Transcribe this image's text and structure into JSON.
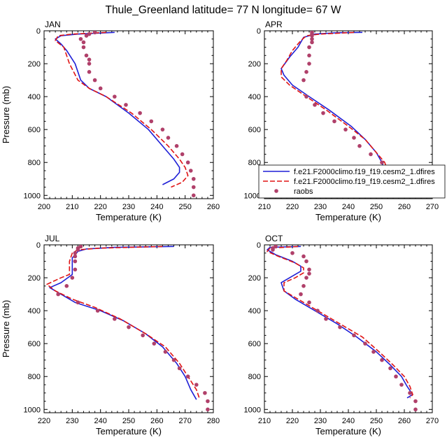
{
  "figure": {
    "title": "Thule_Greenland  latitude= 77 N longitude= 67 W"
  },
  "colors": {
    "model1": "#1f1fd6",
    "model2": "#e01414",
    "raobs": "#b0406a"
  },
  "legend": {
    "entries": [
      "f.e21.F2000climo.f19_f19.cesm2_1.dfires",
      "f.e21.F2000climo.f19_f19.cesm2_1.dfires",
      "raobs"
    ]
  },
  "chart_data": [
    {
      "type": "line",
      "title": "JAN",
      "xlabel": "Temperature (K)",
      "ylabel": "Pressure (mb)",
      "xlim": [
        200,
        260
      ],
      "ylim": [
        1020,
        0
      ],
      "xticks": [
        "200",
        "210",
        "220",
        "230",
        "240",
        "250",
        "260"
      ],
      "yticks": [
        "0",
        "200",
        "400",
        "600",
        "800",
        "1000"
      ],
      "series": [
        {
          "values": [
            [
              225,
              10
            ],
            [
              212,
              20
            ],
            [
              206,
              30
            ],
            [
              204,
              50
            ],
            [
              206,
              80
            ],
            [
              208,
              120
            ],
            [
              211,
              200
            ],
            [
              213,
              300
            ],
            [
              216,
              350
            ],
            [
              222,
              400
            ],
            [
              230,
              500
            ],
            [
              237,
              600
            ],
            [
              242,
              700
            ],
            [
              246,
              780
            ],
            [
              248,
              830
            ],
            [
              248,
              860
            ],
            [
              246,
              900
            ],
            [
              242,
              935
            ]
          ]
        },
        {
          "values": [
            [
              222,
              10
            ],
            [
              210,
              20
            ],
            [
              205,
              30
            ],
            [
              204,
              60
            ],
            [
              207,
              100
            ],
            [
              209,
              200
            ],
            [
              212,
              300
            ],
            [
              216,
              350
            ],
            [
              222,
              400
            ],
            [
              231,
              500
            ],
            [
              238,
              600
            ],
            [
              244,
              700
            ],
            [
              248,
              780
            ],
            [
              250,
              830
            ],
            [
              251,
              880
            ],
            [
              249,
              920
            ],
            [
              245,
              950
            ]
          ]
        },
        {
          "values": [
            [
              218,
              10
            ],
            [
              216,
              20
            ],
            [
              215,
              30
            ],
            [
              213,
              50
            ],
            [
              214,
              70
            ],
            [
              214,
              100
            ],
            [
              215,
              150
            ],
            [
              216,
              175
            ],
            [
              216,
              200
            ],
            [
              216,
              250
            ],
            [
              218,
              300
            ],
            [
              220,
              350
            ],
            [
              225,
              400
            ],
            [
              229,
              450
            ],
            [
              234,
              500
            ],
            [
              238,
              550
            ],
            [
              242,
              600
            ],
            [
              244,
              650
            ],
            [
              247,
              700
            ],
            [
              249,
              750
            ],
            [
              251,
              800
            ],
            [
              252,
              850
            ],
            [
              253,
              900
            ],
            [
              253,
              950
            ],
            [
              253,
              1000
            ]
          ]
        }
      ]
    },
    {
      "type": "line",
      "title": "APR",
      "xlabel": "Temperature (K)",
      "ylabel": "",
      "xlim": [
        210,
        270
      ],
      "ylim": [
        1020,
        0
      ],
      "xticks": [
        "210",
        "220",
        "230",
        "240",
        "250",
        "260",
        "270"
      ],
      "yticks": [
        "0",
        "200",
        "400",
        "600",
        "800",
        "1000"
      ],
      "series": [
        {
          "values": [
            [
              245,
              10
            ],
            [
              236,
              12
            ],
            [
              228,
              20
            ],
            [
              224,
              40
            ],
            [
              222,
              100
            ],
            [
              219,
              160
            ],
            [
              216,
              230
            ],
            [
              217,
              270
            ],
            [
              220,
              330
            ],
            [
              226,
              400
            ],
            [
              233,
              480
            ],
            [
              241,
              580
            ],
            [
              246,
              660
            ],
            [
              250,
              740
            ],
            [
              252,
              800
            ],
            [
              253,
              850
            ],
            [
              254,
              880
            ],
            [
              253,
              910
            ],
            [
              252,
              920
            ]
          ]
        },
        {
          "values": [
            [
              242,
              10
            ],
            [
              230,
              20
            ],
            [
              225,
              30
            ],
            [
              223,
              60
            ],
            [
              220,
              120
            ],
            [
              218,
              180
            ],
            [
              216,
              230
            ],
            [
              216,
              280
            ],
            [
              219,
              330
            ],
            [
              225,
              400
            ],
            [
              232,
              480
            ],
            [
              240,
              580
            ],
            [
              246,
              660
            ],
            [
              250,
              740
            ],
            [
              253,
              800
            ],
            [
              254,
              850
            ],
            [
              256,
              880
            ],
            [
              256,
              910
            ],
            [
              255,
              930
            ]
          ]
        },
        {
          "values": [
            [
              227,
              10
            ],
            [
              227,
              20
            ],
            [
              227,
              30
            ],
            [
              227,
              50
            ],
            [
              227,
              70
            ],
            [
              226,
              100
            ],
            [
              226,
              150
            ],
            [
              226,
              200
            ],
            [
              225,
              250
            ],
            [
              224,
              300
            ],
            [
              225,
              400
            ],
            [
              228,
              450
            ],
            [
              231,
              500
            ],
            [
              235,
              550
            ],
            [
              239,
              600
            ],
            [
              242,
              650
            ],
            [
              244,
              700
            ],
            [
              248,
              750
            ],
            [
              252,
              800
            ],
            [
              254,
              850
            ],
            [
              256,
              900
            ],
            [
              257,
              950
            ],
            [
              257,
              1000
            ]
          ]
        }
      ]
    },
    {
      "type": "line",
      "title": "JUL",
      "xlabel": "Temperature (K)",
      "ylabel": "Pressure (mb)",
      "xlim": [
        220,
        280
      ],
      "ylim": [
        1020,
        0
      ],
      "xticks": [
        "220",
        "230",
        "240",
        "250",
        "260",
        "270",
        "280"
      ],
      "yticks": [
        "0",
        "200",
        "400",
        "600",
        "800",
        "1000"
      ],
      "series": [
        {
          "values": [
            [
              266,
              10
            ],
            [
              245,
              15
            ],
            [
              235,
              25
            ],
            [
              232,
              40
            ],
            [
              230,
              80
            ],
            [
              230,
              130
            ],
            [
              230,
              180
            ],
            [
              226,
              230
            ],
            [
              222,
              260
            ],
            [
              226,
              300
            ],
            [
              231,
              350
            ],
            [
              240,
              400
            ],
            [
              248,
              460
            ],
            [
              256,
              540
            ],
            [
              262,
              620
            ],
            [
              267,
              720
            ],
            [
              270,
              800
            ],
            [
              272,
              880
            ],
            [
              274,
              940
            ]
          ]
        },
        {
          "values": [
            [
              262,
              10
            ],
            [
              240,
              20
            ],
            [
              232,
              30
            ],
            [
              230,
              50
            ],
            [
              229,
              100
            ],
            [
              229,
              150
            ],
            [
              229,
              180
            ],
            [
              226,
              200
            ],
            [
              221,
              240
            ],
            [
              224,
              280
            ],
            [
              230,
              330
            ],
            [
              238,
              380
            ],
            [
              247,
              450
            ],
            [
              256,
              540
            ],
            [
              263,
              620
            ],
            [
              268,
              720
            ],
            [
              271,
              800
            ],
            [
              274,
              880
            ],
            [
              275,
              930
            ]
          ]
        },
        {
          "values": [
            [
              233,
              10
            ],
            [
              232,
              20
            ],
            [
              232,
              30
            ],
            [
              231,
              50
            ],
            [
              231,
              70
            ],
            [
              231,
              100
            ],
            [
              231,
              150
            ],
            [
              230,
              200
            ],
            [
              228,
              250
            ],
            [
              225,
              300
            ],
            [
              232,
              350
            ],
            [
              239,
              400
            ],
            [
              245,
              450
            ],
            [
              250,
              500
            ],
            [
              255,
              550
            ],
            [
              259,
              600
            ],
            [
              263,
              650
            ],
            [
              266,
              700
            ],
            [
              268,
              750
            ],
            [
              271,
              800
            ],
            [
              274,
              850
            ],
            [
              277,
              900
            ],
            [
              278,
              950
            ],
            [
              278,
              1000
            ]
          ]
        }
      ]
    },
    {
      "type": "line",
      "title": "OCT",
      "xlabel": "Temperature (K)",
      "ylabel": "",
      "xlim": [
        210,
        270
      ],
      "ylim": [
        1020,
        0
      ],
      "xticks": [
        "210",
        "220",
        "230",
        "240",
        "250",
        "260",
        "270"
      ],
      "yticks": [
        "0",
        "200",
        "400",
        "600",
        "800",
        "1000"
      ],
      "series": [
        {
          "values": [
            [
              223,
              10
            ],
            [
              212,
              15
            ],
            [
              211,
              30
            ],
            [
              214,
              60
            ],
            [
              220,
              100
            ],
            [
              223,
              130
            ],
            [
              223,
              160
            ],
            [
              220,
              190
            ],
            [
              216,
              230
            ],
            [
              217,
              280
            ],
            [
              221,
              330
            ],
            [
              228,
              400
            ],
            [
              236,
              480
            ],
            [
              243,
              560
            ],
            [
              250,
              650
            ],
            [
              255,
              730
            ],
            [
              259,
              800
            ],
            [
              261,
              860
            ],
            [
              263,
              910
            ],
            [
              261,
              930
            ]
          ]
        },
        {
          "values": [
            [
              222,
              10
            ],
            [
              212,
              20
            ],
            [
              211,
              40
            ],
            [
              215,
              70
            ],
            [
              221,
              110
            ],
            [
              224,
              140
            ],
            [
              224,
              170
            ],
            [
              221,
              200
            ],
            [
              217,
              230
            ],
            [
              217,
              280
            ],
            [
              222,
              330
            ],
            [
              229,
              400
            ],
            [
              237,
              480
            ],
            [
              245,
              560
            ],
            [
              251,
              650
            ],
            [
              256,
              730
            ],
            [
              260,
              800
            ],
            [
              262,
              860
            ],
            [
              263,
              910
            ],
            [
              262,
              930
            ]
          ]
        },
        {
          "values": [
            [
              214,
              10
            ],
            [
              213,
              20
            ],
            [
              213,
              30
            ],
            [
              220,
              50
            ],
            [
              224,
              70
            ],
            [
              225,
              100
            ],
            [
              226,
              150
            ],
            [
              226,
              175
            ],
            [
              225,
              200
            ],
            [
              224,
              250
            ],
            [
              223,
              300
            ],
            [
              226,
              350
            ],
            [
              229,
              400
            ],
            [
              232,
              450
            ],
            [
              237,
              500
            ],
            [
              242,
              550
            ],
            [
              246,
              600
            ],
            [
              249,
              650
            ],
            [
              252,
              700
            ],
            [
              255,
              750
            ],
            [
              257,
              800
            ],
            [
              259,
              850
            ],
            [
              262,
              900
            ],
            [
              264,
              950
            ],
            [
              264,
              1000
            ]
          ]
        }
      ]
    }
  ]
}
